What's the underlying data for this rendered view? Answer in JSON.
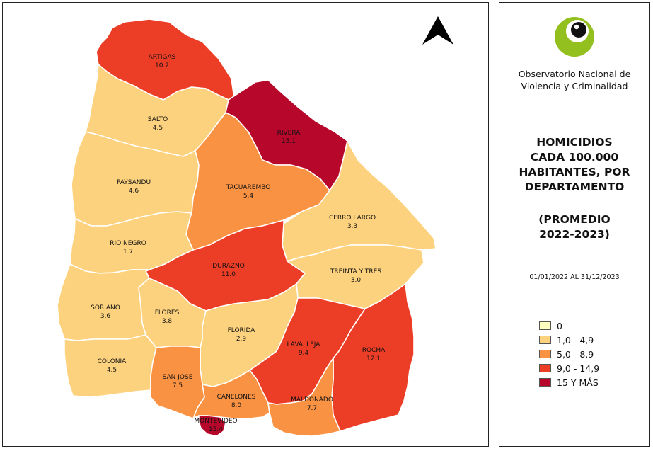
{
  "organization": {
    "line1": "Observatorio Nacional de",
    "line2": "Violencia y Criminalidad"
  },
  "title": {
    "line1": "HOMICIDIOS",
    "line2": "CADA 100.000",
    "line3": "HABITANTES, POR",
    "line4": "DEPARTAMENTO"
  },
  "subtitle": {
    "line1": "(PROMEDIO",
    "line2": "2022-2023)"
  },
  "date_range": "01/01/2022 AL 31/12/2023",
  "legend": [
    {
      "label": "0",
      "color": "#ffffc0"
    },
    {
      "label": "1,0 - 4,9",
      "color": "#fdd27e"
    },
    {
      "label": "5,0 - 8,9",
      "color": "#f99243"
    },
    {
      "label": "9,0 - 14,9",
      "color": "#ec3e27"
    },
    {
      "label": "15 Y MÁS",
      "color": "#b7082c"
    }
  ],
  "departments": {
    "artigas": {
      "name": "ARTIGAS",
      "value": "10.2",
      "color": "#ec3e27"
    },
    "salto": {
      "name": "SALTO",
      "value": "4.5",
      "color": "#fdd27e"
    },
    "rivera": {
      "name": "RIVERA",
      "value": "15.1",
      "color": "#b7082c"
    },
    "paysandu": {
      "name": "PAYSANDU",
      "value": "4.6",
      "color": "#fdd27e"
    },
    "tacuarembo": {
      "name": "TACUAREMBO",
      "value": "5.4",
      "color": "#f99243"
    },
    "cerro_largo": {
      "name": "CERRO LARGO",
      "value": "3.3",
      "color": "#fdd27e"
    },
    "rio_negro": {
      "name": "RIO NEGRO",
      "value": "1.7",
      "color": "#fdd27e"
    },
    "durazno": {
      "name": "DURAZNO",
      "value": "11.0",
      "color": "#ec3e27"
    },
    "treinta_y_tres": {
      "name": "TREINTA Y TRES",
      "value": "3.0",
      "color": "#fdd27e"
    },
    "soriano": {
      "name": "SORIANO",
      "value": "3.6",
      "color": "#fdd27e"
    },
    "flores": {
      "name": "FLORES",
      "value": "3.8",
      "color": "#fdd27e"
    },
    "florida": {
      "name": "FLORIDA",
      "value": "2.9",
      "color": "#fdd27e"
    },
    "lavalleja": {
      "name": "LAVALLEJA",
      "value": "9.4",
      "color": "#ec3e27"
    },
    "rocha": {
      "name": "ROCHA",
      "value": "12.1",
      "color": "#ec3e27"
    },
    "colonia": {
      "name": "COLONIA",
      "value": "4.5",
      "color": "#fdd27e"
    },
    "san_jose": {
      "name": "SAN JOSE",
      "value": "7.5",
      "color": "#f99243"
    },
    "canelones": {
      "name": "CANELONES",
      "value": "8.0",
      "color": "#f99243"
    },
    "maldonado": {
      "name": "MALDONADO",
      "value": "7.7",
      "color": "#f99243"
    },
    "montevideo": {
      "name": "MONTEVIDEO",
      "value": "15.4",
      "color": "#b7082c"
    }
  }
}
